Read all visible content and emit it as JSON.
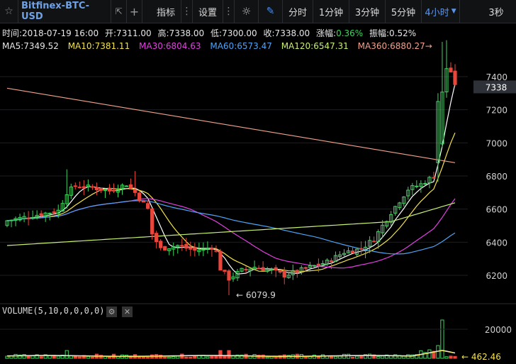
{
  "toolbar": {
    "symbol": "Bitfinex-BTC-USD",
    "indicators_label": "指标",
    "settings_label": "设置",
    "intervals": [
      "分时",
      "1分钟",
      "3分钟",
      "5分钟"
    ],
    "active_interval": "4小时",
    "refresh_label": "3秒"
  },
  "info": {
    "time": "时间:2018-07-19 16:00",
    "open": "开:7311.00",
    "high": "高:7338.00",
    "low": "低:7300.00",
    "close": "收:7338.00",
    "change_label": "涨幅:",
    "change_value": "0.36%",
    "amplitude": "振幅:0.52%"
  },
  "ma_labels": {
    "ma5": "MA5:7349.52",
    "ma10": "MA10:7381.11",
    "ma30": "MA30:6804.63",
    "ma60": "MA60:6573.47",
    "ma120": "MA120:6547.31",
    "ma360": "MA360:6880.27"
  },
  "colors": {
    "up": "#3fd35e",
    "down": "#e8473c",
    "ma5": "#ffffff",
    "ma10": "#f2e14a",
    "ma30": "#e040e0",
    "ma60": "#4fa3f5",
    "ma120": "#c7ef74",
    "ma360": "#f0a08c"
  },
  "volume": {
    "title": "VOLUME(5,10,0,0,0,0)",
    "axis_label": "20000",
    "last_label": "462.46"
  },
  "chart_data": {
    "type": "candlestick",
    "price_axis": {
      "ticks": [
        6200,
        6400,
        6600,
        6800,
        7000,
        7200,
        7400
      ],
      "current_price": "7338"
    },
    "annotations": {
      "low_marker": "6079.9"
    },
    "series_hint": "4h candles BTC-USD ~2018-07-03 to 2018-07-19"
  }
}
